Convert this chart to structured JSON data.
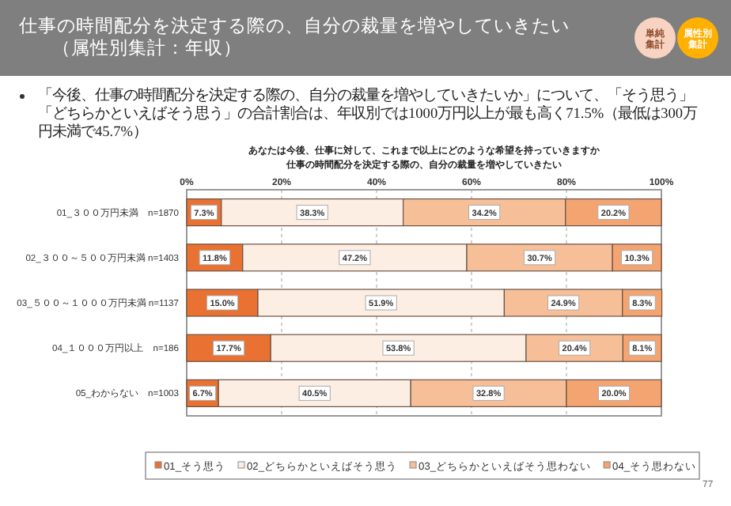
{
  "chart_data": {
    "type": "bar",
    "orientation": "horizontal",
    "stacked": true,
    "title": "仕事の時間配分を決定する際の、自分の裁量を増やしていきたい",
    "subtitle": "（属性別集計：年収）",
    "annotations": [
      "「今後、仕事の時間配分を決定する際の、自分の裁量を増やしていきたいか」について、「そう思う」「どちらかといえばそう思う」の合計割合は、年収別では1000万円以上が最も高く71.5%（最低は300万円未満で45.7%）",
      "あなたは今後、仕事に対して、これまで以上にどのような希望を持っていきますか",
      "仕事の時間配分を決定する際の、自分の裁量を増やしていきたい",
      "単純集計",
      "属性別集計",
      "77"
    ],
    "categories": [
      "01_３００万円未満　n=1870",
      "02_３００～５００万円未満 n=1403",
      "03_５００～１０００万円未満 n=1137",
      "04_１０００万円以上　n=186",
      "05_わからない　n=1003"
    ],
    "series": [
      {
        "name": "01_そう思う",
        "color": "#e97132",
        "values": [
          7.3,
          11.8,
          15.0,
          17.7,
          6.7
        ],
        "value_labels": [
          "7.3%",
          "11.8%",
          "15.0%",
          "17.7%",
          "6.7%"
        ]
      },
      {
        "name": "02_どちらかといえばそう思う",
        "color": "#fdeee3",
        "values": [
          38.3,
          47.2,
          51.9,
          53.8,
          40.5
        ],
        "value_labels": [
          "38.3%",
          "47.2%",
          "51.9%",
          "53.8%",
          "40.5%"
        ]
      },
      {
        "name": "03_どちらかといえばそう思わない",
        "color": "#f7bf98",
        "values": [
          34.2,
          30.7,
          24.9,
          20.4,
          32.8
        ],
        "value_labels": [
          "34.2%",
          "30.7%",
          "24.9%",
          "20.4%",
          "32.8%"
        ]
      },
      {
        "name": "04_そう思わない",
        "color": "#f3a470",
        "values": [
          20.2,
          10.3,
          8.3,
          8.1,
          20.0
        ],
        "value_labels": [
          "20.2%",
          "10.3%",
          "8.3%",
          "8.1%",
          "20.0%"
        ]
      }
    ],
    "xlim": [
      0,
      100
    ],
    "xticks": [
      {
        "value": 0,
        "label": "0%"
      },
      {
        "value": 20,
        "label": "20%"
      },
      {
        "value": 40,
        "label": "40%"
      },
      {
        "value": 60,
        "label": "60%"
      },
      {
        "value": 80,
        "label": "80%"
      },
      {
        "value": 100,
        "label": "100%"
      }
    ],
    "grid": "x",
    "legend": "bottom"
  }
}
